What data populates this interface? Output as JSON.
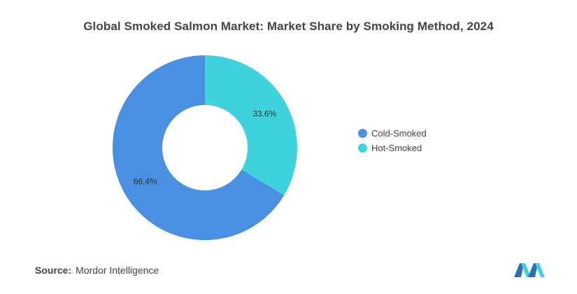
{
  "chart_data": {
    "type": "pie",
    "title": "Global Smoked Salmon Market: Market Share by Smoking Method, 2024",
    "donut": true,
    "categories": [
      "Cold-Smoked",
      "Hot-Smoked"
    ],
    "values": [
      66.4,
      33.6
    ],
    "data_labels": [
      "66.4%",
      "33.6%"
    ],
    "colors": [
      "#4a90e2",
      "#3ed2dc"
    ],
    "legend_position": "right"
  },
  "source": {
    "label": "Source:",
    "text": "Mordor Intelligence"
  },
  "logo": {
    "icon": "mordor-intelligence-logo",
    "colors": [
      "#2c6fb7",
      "#3ed2dc"
    ]
  }
}
